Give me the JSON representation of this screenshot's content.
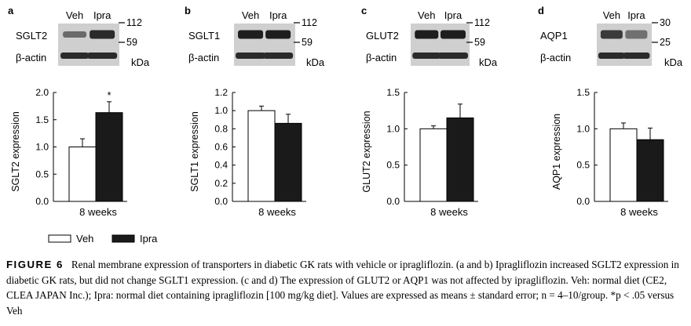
{
  "panels": [
    {
      "letter": "a",
      "lane_labels": [
        "Veh",
        "Ipra"
      ],
      "blot_rows": [
        "SGLT2",
        "β-actin"
      ],
      "markers": [
        "112",
        "59"
      ],
      "kda": "kDa",
      "chart_data": {
        "type": "bar",
        "categories": [
          "8 weeks"
        ],
        "series": [
          {
            "name": "Veh",
            "values": [
              1.0
            ],
            "error": [
              0.15
            ],
            "color": "#ffffff"
          },
          {
            "name": "Ipra",
            "values": [
              1.63
            ],
            "error": [
              0.2
            ],
            "color": "#1a1a1a"
          }
        ],
        "ylabel": "SGLT2 expression",
        "xlabel": "8 weeks",
        "ylim": [
          0,
          2.0
        ],
        "yticks": [
          "0.0",
          "0.5",
          "1.0",
          "1.5",
          "2.0"
        ],
        "annotations": [
          "*"
        ]
      }
    },
    {
      "letter": "b",
      "lane_labels": [
        "Veh",
        "Ipra"
      ],
      "blot_rows": [
        "SGLT1",
        "β-actin"
      ],
      "markers": [
        "112",
        "59"
      ],
      "kda": "kDa",
      "chart_data": {
        "type": "bar",
        "categories": [
          "8 weeks"
        ],
        "series": [
          {
            "name": "Veh",
            "values": [
              1.0
            ],
            "error": [
              0.05
            ],
            "color": "#ffffff"
          },
          {
            "name": "Ipra",
            "values": [
              0.86
            ],
            "error": [
              0.1
            ],
            "color": "#1a1a1a"
          }
        ],
        "ylabel": "SGLT1 expression",
        "xlabel": "8 weeks",
        "ylim": [
          0,
          1.2
        ],
        "yticks": [
          "0.0",
          "0.2",
          "0.4",
          "0.6",
          "0.8",
          "1.0",
          "1.2"
        ],
        "annotations": []
      }
    },
    {
      "letter": "c",
      "lane_labels": [
        "Veh",
        "Ipra"
      ],
      "blot_rows": [
        "GLUT2",
        "β-actin"
      ],
      "markers": [
        "112",
        "59"
      ],
      "kda": "kDa",
      "chart_data": {
        "type": "bar",
        "categories": [
          "8 weeks"
        ],
        "series": [
          {
            "name": "Veh",
            "values": [
              1.0
            ],
            "error": [
              0.04
            ],
            "color": "#ffffff"
          },
          {
            "name": "Ipra",
            "values": [
              1.15
            ],
            "error": [
              0.19
            ],
            "color": "#1a1a1a"
          }
        ],
        "ylabel": "GLUT2 expression",
        "xlabel": "8 weeks",
        "ylim": [
          0,
          1.5
        ],
        "yticks": [
          "0.0",
          "0.5",
          "1.0",
          "1.5"
        ],
        "annotations": []
      }
    },
    {
      "letter": "d",
      "lane_labels": [
        "Veh",
        "Ipra"
      ],
      "blot_rows": [
        "AQP1",
        "β-actin"
      ],
      "markers": [
        "30",
        "25"
      ],
      "kda": "kDa",
      "chart_data": {
        "type": "bar",
        "categories": [
          "8 weeks"
        ],
        "series": [
          {
            "name": "Veh",
            "values": [
              1.0
            ],
            "error": [
              0.08
            ],
            "color": "#ffffff"
          },
          {
            "name": "Ipra",
            "values": [
              0.85
            ],
            "error": [
              0.16
            ],
            "color": "#1a1a1a"
          }
        ],
        "ylabel": "AQP1 expression",
        "xlabel": "8 weeks",
        "ylim": [
          0,
          1.5
        ],
        "yticks": [
          "0.0",
          "0.5",
          "1.0",
          "1.5"
        ],
        "annotations": []
      }
    }
  ],
  "legend": [
    {
      "label": "Veh",
      "color": "#ffffff"
    },
    {
      "label": "Ipra",
      "color": "#1a1a1a"
    }
  ],
  "caption": {
    "label": "FIGURE 6",
    "text": "Renal membrane expression of transporters in diabetic GK rats with vehicle or ipragliflozin. (a and b) Ipragliflozin increased SGLT2 expression in diabetic GK rats, but did not change SGLT1 expression. (c and d) The expression of GLUT2 or AQP1 was not affected by ipragliflozin. Veh: normal diet (CE2, CLEA JAPAN Inc.); Ipra: normal diet containing ipragliflozin [100 mg/kg diet]. Values are expressed as means ± standard error; n = 4–10/group. *p < .05 versus Veh"
  }
}
